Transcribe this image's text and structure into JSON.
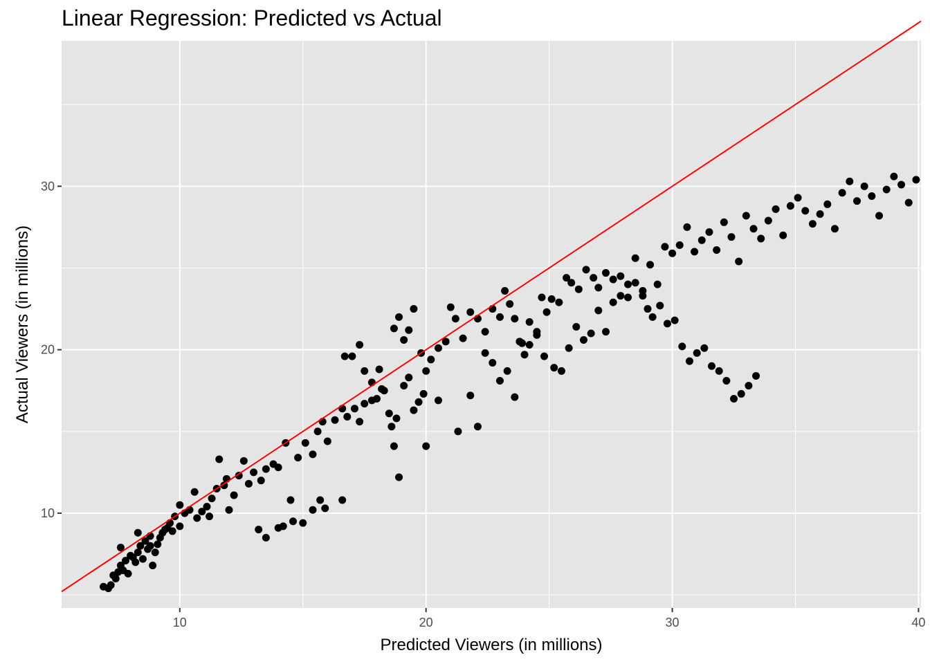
{
  "chart_data": {
    "type": "scatter",
    "title": "Linear Regression: Predicted vs Actual",
    "xlabel": "Predicted Viewers (in millions)",
    "ylabel": "Actual Viewers (in millions)",
    "xlim": [
      5.2,
      40.1
    ],
    "ylim": [
      4.2,
      38.9
    ],
    "x_ticks": [
      10,
      20,
      30,
      40
    ],
    "y_ticks": [
      10,
      20,
      30
    ],
    "grid": true,
    "colors": {
      "panel": "#e5e5e5",
      "grid": "#ffffff",
      "points": "#000000",
      "fit_line": "#ff0000"
    },
    "fit_line": {
      "x": [
        5.2,
        40.1
      ],
      "y": [
        5.2,
        40.1
      ]
    },
    "points": [
      [
        6.9,
        5.5
      ],
      [
        7.1,
        5.4
      ],
      [
        7.2,
        5.6
      ],
      [
        7.3,
        6.2
      ],
      [
        7.4,
        6.0
      ],
      [
        7.5,
        6.4
      ],
      [
        7.6,
        6.8
      ],
      [
        7.7,
        6.5
      ],
      [
        7.6,
        7.9
      ],
      [
        7.8,
        7.1
      ],
      [
        7.9,
        6.3
      ],
      [
        8.0,
        7.4
      ],
      [
        8.1,
        7.3
      ],
      [
        8.2,
        7.0
      ],
      [
        8.3,
        7.6
      ],
      [
        8.3,
        8.8
      ],
      [
        8.4,
        8.0
      ],
      [
        8.5,
        7.2
      ],
      [
        8.6,
        8.3
      ],
      [
        8.7,
        7.8
      ],
      [
        8.8,
        8.0
      ],
      [
        8.8,
        8.6
      ],
      [
        8.9,
        6.8
      ],
      [
        9.0,
        7.6
      ],
      [
        9.1,
        8.1
      ],
      [
        9.2,
        8.5
      ],
      [
        9.3,
        8.8
      ],
      [
        9.4,
        9.0
      ],
      [
        9.5,
        9.1
      ],
      [
        9.7,
        8.9
      ],
      [
        9.6,
        9.4
      ],
      [
        9.8,
        9.8
      ],
      [
        10.0,
        9.2
      ],
      [
        10.0,
        10.5
      ],
      [
        10.2,
        10.0
      ],
      [
        10.4,
        10.2
      ],
      [
        10.6,
        11.3
      ],
      [
        10.7,
        9.7
      ],
      [
        10.9,
        10.1
      ],
      [
        11.1,
        10.4
      ],
      [
        11.2,
        9.8
      ],
      [
        11.3,
        10.9
      ],
      [
        11.5,
        11.5
      ],
      [
        11.6,
        13.3
      ],
      [
        11.8,
        11.7
      ],
      [
        11.9,
        12.1
      ],
      [
        12.0,
        10.2
      ],
      [
        12.2,
        11.1
      ],
      [
        12.4,
        12.3
      ],
      [
        12.6,
        13.2
      ],
      [
        12.8,
        11.8
      ],
      [
        13.0,
        12.5
      ],
      [
        13.3,
        12.0
      ],
      [
        13.5,
        12.7
      ],
      [
        13.8,
        13.0
      ],
      [
        14.0,
        12.8
      ],
      [
        14.3,
        14.3
      ],
      [
        14.5,
        10.8
      ],
      [
        14.8,
        13.4
      ],
      [
        15.1,
        14.3
      ],
      [
        15.4,
        13.6
      ],
      [
        15.6,
        15.0
      ],
      [
        15.8,
        15.6
      ],
      [
        16.0,
        14.4
      ],
      [
        16.3,
        15.7
      ],
      [
        16.6,
        16.4
      ],
      [
        16.8,
        15.9
      ],
      [
        17.1,
        16.4
      ],
      [
        17.3,
        15.6
      ],
      [
        17.5,
        16.7
      ],
      [
        17.8,
        16.9
      ],
      [
        18.0,
        17.0
      ],
      [
        18.2,
        17.6
      ],
      [
        18.5,
        16.1
      ],
      [
        18.8,
        15.8
      ],
      [
        19.1,
        17.8
      ],
      [
        19.3,
        18.3
      ],
      [
        19.5,
        16.3
      ],
      [
        19.7,
        16.8
      ],
      [
        19.9,
        17.3
      ],
      [
        13.2,
        9.0
      ],
      [
        13.5,
        8.5
      ],
      [
        14.0,
        9.1
      ],
      [
        14.2,
        9.2
      ],
      [
        14.6,
        9.5
      ],
      [
        15.0,
        9.4
      ],
      [
        15.4,
        10.2
      ],
      [
        15.7,
        10.8
      ],
      [
        15.9,
        10.3
      ],
      [
        16.6,
        10.8
      ],
      [
        16.7,
        19.6
      ],
      [
        17.0,
        19.6
      ],
      [
        17.3,
        20.3
      ],
      [
        17.5,
        18.7
      ],
      [
        17.8,
        18.0
      ],
      [
        18.1,
        18.8
      ],
      [
        18.3,
        17.5
      ],
      [
        18.6,
        15.3
      ],
      [
        18.7,
        14.1
      ],
      [
        18.9,
        12.2
      ],
      [
        18.7,
        21.3
      ],
      [
        18.9,
        22.0
      ],
      [
        19.1,
        20.6
      ],
      [
        19.3,
        21.2
      ],
      [
        19.5,
        22.5
      ],
      [
        19.8,
        19.8
      ],
      [
        20.0,
        18.7
      ],
      [
        20.2,
        19.4
      ],
      [
        20.5,
        20.1
      ],
      [
        20.8,
        20.5
      ],
      [
        21.0,
        22.6
      ],
      [
        21.2,
        21.9
      ],
      [
        21.5,
        20.7
      ],
      [
        21.8,
        22.3
      ],
      [
        22.1,
        21.9
      ],
      [
        22.4,
        21.1
      ],
      [
        22.7,
        22.5
      ],
      [
        23.0,
        22.0
      ],
      [
        23.2,
        23.6
      ],
      [
        23.4,
        22.8
      ],
      [
        23.6,
        21.9
      ],
      [
        23.8,
        20.5
      ],
      [
        24.0,
        19.7
      ],
      [
        24.2,
        20.3
      ],
      [
        24.5,
        21.1
      ],
      [
        24.7,
        23.2
      ],
      [
        24.9,
        22.3
      ],
      [
        25.1,
        23.1
      ],
      [
        25.4,
        22.9
      ],
      [
        25.7,
        24.4
      ],
      [
        25.9,
        24.1
      ],
      [
        26.2,
        23.7
      ],
      [
        26.5,
        24.9
      ],
      [
        26.8,
        24.4
      ],
      [
        27.0,
        23.8
      ],
      [
        27.3,
        24.7
      ],
      [
        27.6,
        24.3
      ],
      [
        27.9,
        24.5
      ],
      [
        28.2,
        23.2
      ],
      [
        28.5,
        24.1
      ],
      [
        28.8,
        23.3
      ],
      [
        29.0,
        22.5
      ],
      [
        29.2,
        22.0
      ],
      [
        29.5,
        22.7
      ],
      [
        29.8,
        21.6
      ],
      [
        30.1,
        21.8
      ],
      [
        30.4,
        20.2
      ],
      [
        30.7,
        19.3
      ],
      [
        31.0,
        19.8
      ],
      [
        31.3,
        20.1
      ],
      [
        31.6,
        19.0
      ],
      [
        31.9,
        18.7
      ],
      [
        32.2,
        18.1
      ],
      [
        32.5,
        17.0
      ],
      [
        32.8,
        17.3
      ],
      [
        33.1,
        17.8
      ],
      [
        33.4,
        18.4
      ],
      [
        20.0,
        14.1
      ],
      [
        20.5,
        16.9
      ],
      [
        21.3,
        15.0
      ],
      [
        21.8,
        17.2
      ],
      [
        22.1,
        15.3
      ],
      [
        22.4,
        19.8
      ],
      [
        22.7,
        19.2
      ],
      [
        23.0,
        18.1
      ],
      [
        23.3,
        18.7
      ],
      [
        23.6,
        17.1
      ],
      [
        23.9,
        20.4
      ],
      [
        24.2,
        21.7
      ],
      [
        24.5,
        20.9
      ],
      [
        24.8,
        19.6
      ],
      [
        25.2,
        18.9
      ],
      [
        25.5,
        18.7
      ],
      [
        25.8,
        20.1
      ],
      [
        26.1,
        21.4
      ],
      [
        26.4,
        20.6
      ],
      [
        26.7,
        21.0
      ],
      [
        27.0,
        22.4
      ],
      [
        27.3,
        21.1
      ],
      [
        27.6,
        22.9
      ],
      [
        27.9,
        23.3
      ],
      [
        28.2,
        24.0
      ],
      [
        28.5,
        25.6
      ],
      [
        28.8,
        23.6
      ],
      [
        29.1,
        25.2
      ],
      [
        29.4,
        24.0
      ],
      [
        29.7,
        26.3
      ],
      [
        30.0,
        25.9
      ],
      [
        30.3,
        26.4
      ],
      [
        30.6,
        27.5
      ],
      [
        30.9,
        26.0
      ],
      [
        31.2,
        26.7
      ],
      [
        31.5,
        27.2
      ],
      [
        31.8,
        26.1
      ],
      [
        32.1,
        27.8
      ],
      [
        32.4,
        26.9
      ],
      [
        32.7,
        25.4
      ],
      [
        33.0,
        28.2
      ],
      [
        33.3,
        27.4
      ],
      [
        33.6,
        26.8
      ],
      [
        33.9,
        27.9
      ],
      [
        34.2,
        28.6
      ],
      [
        34.5,
        27.0
      ],
      [
        34.8,
        28.8
      ],
      [
        35.1,
        29.3
      ],
      [
        35.4,
        28.5
      ],
      [
        35.7,
        27.7
      ],
      [
        36.0,
        28.3
      ],
      [
        36.3,
        28.9
      ],
      [
        36.6,
        27.4
      ],
      [
        36.9,
        29.6
      ],
      [
        37.2,
        30.3
      ],
      [
        37.5,
        29.1
      ],
      [
        37.8,
        30.0
      ],
      [
        38.1,
        29.4
      ],
      [
        38.4,
        28.2
      ],
      [
        38.7,
        29.8
      ],
      [
        39.0,
        30.6
      ],
      [
        39.3,
        30.1
      ],
      [
        39.6,
        29.0
      ],
      [
        39.9,
        30.4
      ]
    ]
  }
}
